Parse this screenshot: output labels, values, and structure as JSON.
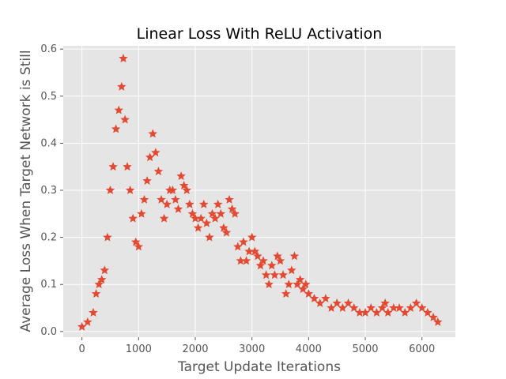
{
  "chart_data": {
    "type": "scatter",
    "title": "Linear Loss With ReLU Activation",
    "xlabel": "Target Update Iterations",
    "ylabel": "Average Loss When Target Network is Still",
    "xlim": [
      -330,
      6590
    ],
    "ylim": [
      -0.012,
      0.607
    ],
    "xticks": [
      0,
      1000,
      2000,
      3000,
      4000,
      5000,
      6000
    ],
    "yticks": [
      0.0,
      0.1,
      0.2,
      0.3,
      0.4,
      0.5,
      0.6
    ],
    "xtick_labels": [
      "0",
      "1000",
      "2000",
      "3000",
      "4000",
      "5000",
      "6000"
    ],
    "ytick_labels": [
      "0.0",
      "0.1",
      "0.2",
      "0.3",
      "0.4",
      "0.5",
      "0.6"
    ],
    "grid": true,
    "marker": "star",
    "colors": {
      "marker": "#E24A33",
      "plot_background": "#E5E5E5",
      "grid": "#FFFFFF"
    },
    "series": [
      {
        "x": [
          0,
          100,
          200,
          250,
          300,
          350,
          400,
          450,
          500,
          550,
          600,
          650,
          700,
          730,
          760,
          800,
          850,
          900,
          950,
          1000,
          1050,
          1100,
          1150,
          1200,
          1250,
          1300,
          1350,
          1400,
          1450,
          1500,
          1550,
          1600,
          1650,
          1700,
          1750,
          1800,
          1850,
          1900,
          1950,
          2000,
          2050,
          2100,
          2150,
          2200,
          2250,
          2300,
          2350,
          2400,
          2450,
          2500,
          2550,
          2600,
          2650,
          2700,
          2750,
          2800,
          2850,
          2900,
          2950,
          3000,
          3050,
          3100,
          3150,
          3200,
          3250,
          3300,
          3350,
          3400,
          3450,
          3500,
          3550,
          3600,
          3650,
          3700,
          3750,
          3800,
          3850,
          3900,
          3950,
          4000,
          4100,
          4200,
          4300,
          4400,
          4500,
          4600,
          4700,
          4800,
          4900,
          5000,
          5100,
          5200,
          5300,
          5350,
          5400,
          5500,
          5600,
          5700,
          5800,
          5900,
          6000,
          6100,
          6200,
          6280
        ],
        "y": [
          0.01,
          0.02,
          0.04,
          0.08,
          0.1,
          0.11,
          0.13,
          0.2,
          0.3,
          0.35,
          0.43,
          0.47,
          0.52,
          0.58,
          0.45,
          0.35,
          0.3,
          0.24,
          0.19,
          0.18,
          0.25,
          0.28,
          0.32,
          0.37,
          0.42,
          0.38,
          0.34,
          0.28,
          0.24,
          0.27,
          0.3,
          0.3,
          0.28,
          0.26,
          0.33,
          0.31,
          0.3,
          0.27,
          0.25,
          0.24,
          0.22,
          0.24,
          0.27,
          0.23,
          0.2,
          0.25,
          0.24,
          0.27,
          0.25,
          0.22,
          0.21,
          0.28,
          0.26,
          0.25,
          0.18,
          0.15,
          0.19,
          0.15,
          0.17,
          0.2,
          0.17,
          0.16,
          0.14,
          0.15,
          0.12,
          0.1,
          0.14,
          0.12,
          0.16,
          0.15,
          0.12,
          0.08,
          0.1,
          0.13,
          0.16,
          0.1,
          0.11,
          0.09,
          0.1,
          0.08,
          0.07,
          0.06,
          0.07,
          0.05,
          0.06,
          0.05,
          0.06,
          0.05,
          0.04,
          0.04,
          0.05,
          0.04,
          0.05,
          0.06,
          0.04,
          0.05,
          0.05,
          0.04,
          0.05,
          0.06,
          0.05,
          0.04,
          0.03,
          0.02
        ]
      }
    ]
  }
}
